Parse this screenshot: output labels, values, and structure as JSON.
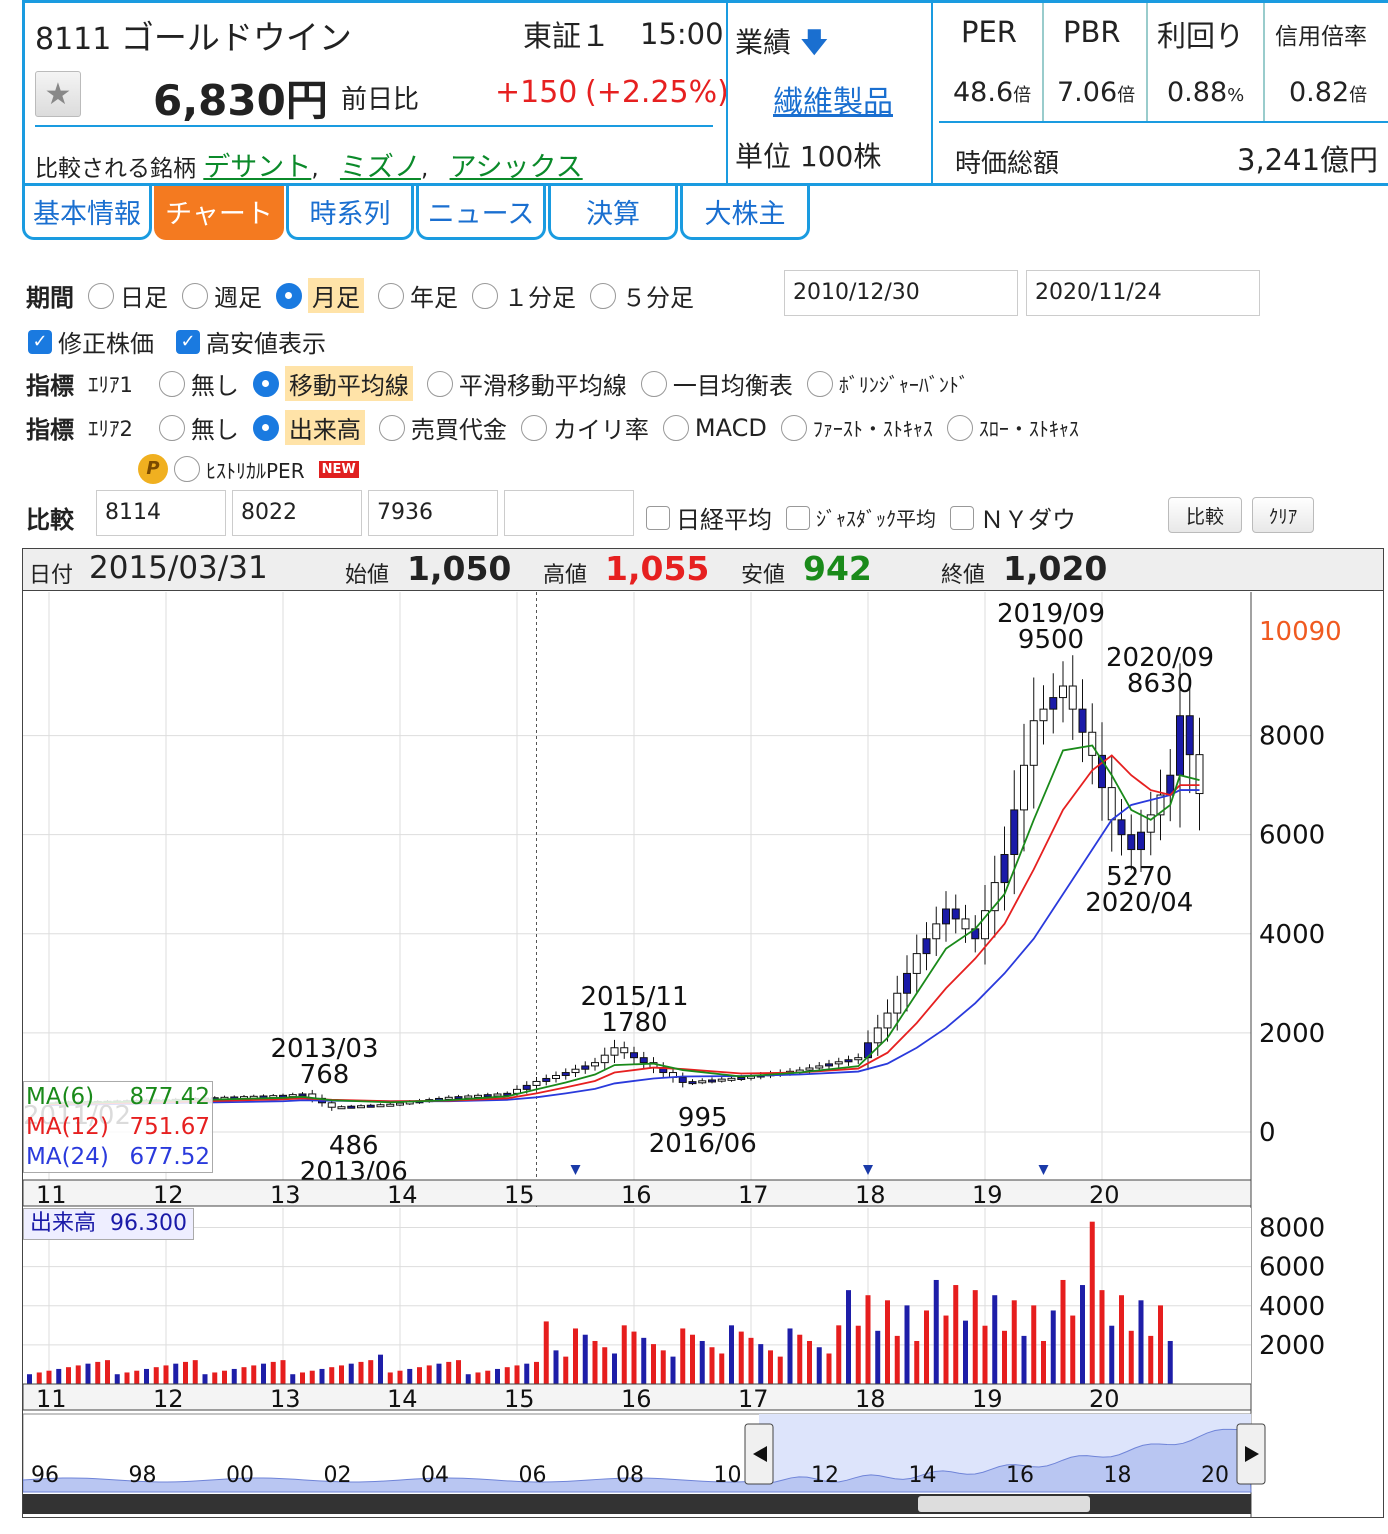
{
  "header": {
    "code": "8111",
    "name": "ゴールドウイン",
    "market": "東証１",
    "time": "15:00",
    "price": "6,830円",
    "change_label": "前日比",
    "change": "+150",
    "change_pct": "(+2.25%)",
    "compare_label": "比較される銘柄",
    "compare_stocks": [
      "デサント",
      "ミズノ",
      "アシックス"
    ],
    "performance_label": "業績",
    "sector": "繊維製品",
    "unit": "単位 100株",
    "metrics": [
      {
        "label": "PER",
        "value": "48.6",
        "unit": "倍"
      },
      {
        "label": "PBR",
        "value": "7.06",
        "unit": "倍"
      },
      {
        "label": "利回り",
        "value": "0.88",
        "unit": "%"
      },
      {
        "label": "信用倍率",
        "value": "0.82",
        "unit": "倍"
      }
    ],
    "market_cap_label": "時価総額",
    "market_cap": "3,241億円"
  },
  "tabs": [
    "基本情報",
    "チャート",
    "時系列",
    "ニュース",
    "決算",
    "大株主"
  ],
  "active_tab": 1,
  "controls": {
    "period_label": "期間",
    "period_options": [
      "日足",
      "週足",
      "月足",
      "年足",
      "１分足",
      "５分足"
    ],
    "period_selected": 2,
    "date_from": "2010/12/30",
    "date_to": "2020/11/24",
    "checks": [
      "修正株価",
      "高安値表示"
    ],
    "ind1_label": "指標",
    "ind1_area": "ｴﾘｱ1",
    "ind1_options": [
      "無し",
      "移動平均線",
      "平滑移動平均線",
      "一目均衡表",
      "ﾎﾞﾘﾝｼﾞｬｰﾊﾞﾝﾄﾞ"
    ],
    "ind1_selected": 1,
    "ind2_label": "指標",
    "ind2_area": "ｴﾘｱ2",
    "ind2_options": [
      "無し",
      "出来高",
      "売買代金",
      "カイリ率",
      "MACD",
      "ﾌｧｰｽﾄ・ｽﾄｷｬｽ",
      "ｽﾛｰ・ｽﾄｷｬｽ"
    ],
    "ind2_selected": 1,
    "hist_per": "ﾋｽﾄﾘｶﾙPER",
    "new_badge": "NEW",
    "p_badge": "P",
    "compare_label": "比較",
    "compare_codes": [
      "8114",
      "8022",
      "7936",
      ""
    ],
    "compare_checks": [
      "日経平均",
      "ｼﾞｬｽﾀﾞｯｸ平均",
      "ＮＹダウ"
    ],
    "btn_compare": "比較",
    "btn_clear": "ｸﾘｱ"
  },
  "infobar": {
    "date_label": "日付",
    "date": "2015/03/31",
    "open_label": "始値",
    "open": "1,050",
    "high_label": "高値",
    "high": "1,055",
    "low_label": "安値",
    "low": "942",
    "close_label": "終値",
    "close": "1,020"
  },
  "colors": {
    "up": "#ffffff",
    "down": "#1a1aa8",
    "ma6": "#1a8a1a",
    "ma12": "#e62020",
    "ma24": "#2a3adc",
    "vol_up": "#e61e1e",
    "vol_down": "#1e1ea8",
    "accent": "#1a9be0",
    "tab_active": "#f47a20"
  },
  "chart_data": [
    {
      "type": "candlestick",
      "period": "monthly",
      "x_ticks": [
        "11",
        "12",
        "13",
        "14",
        "15",
        "16",
        "17",
        "18",
        "19",
        "20"
      ],
      "y_ticks": [
        0,
        2000,
        4000,
        6000,
        8000
      ],
      "ylim": [
        0,
        10090
      ],
      "current_max_label": "10090",
      "ma_legend": [
        {
          "name": "MA(6)",
          "value": "877.42"
        },
        {
          "name": "MA(12)",
          "value": "751.67"
        },
        {
          "name": "MA(24)",
          "value": "677.52"
        }
      ],
      "annotations": [
        {
          "date": "2011/02",
          "value": ""
        },
        {
          "date": "2013/03",
          "value": "768"
        },
        {
          "date": "2013/06",
          "value": "486"
        },
        {
          "date": "2015/11",
          "value": "1780"
        },
        {
          "date": "2016/06",
          "value": "995"
        },
        {
          "date": "2019/09",
          "value": "9500"
        },
        {
          "date": "2020/09",
          "value": "8630"
        },
        {
          "date": "2020/04",
          "value": "5270"
        }
      ],
      "months": [
        "2011-01",
        "2011-07",
        "2012-01",
        "2012-07",
        "2013-01",
        "2013-03",
        "2013-06",
        "2013-12",
        "2014-06",
        "2014-12",
        "2015-03",
        "2015-06",
        "2015-09",
        "2015-11",
        "2016-03",
        "2016-06",
        "2016-12",
        "2017-06",
        "2017-12",
        "2018-03",
        "2018-06",
        "2018-09",
        "2018-12",
        "2019-03",
        "2019-06",
        "2019-09",
        "2019-12",
        "2020-02",
        "2020-04",
        "2020-06",
        "2020-08",
        "2020-09",
        "2020-11"
      ],
      "close": [
        600,
        620,
        650,
        700,
        740,
        768,
        500,
        560,
        700,
        780,
        1020,
        1200,
        1400,
        1700,
        1300,
        1000,
        1100,
        1250,
        1500,
        2400,
        3600,
        4500,
        3900,
        5600,
        8300,
        9000,
        7600,
        6300,
        5700,
        6400,
        7200,
        8400,
        6830
      ],
      "ma6": [
        580,
        600,
        630,
        660,
        690,
        710,
        640,
        600,
        640,
        720,
        860,
        1000,
        1160,
        1350,
        1380,
        1250,
        1120,
        1200,
        1330,
        1900,
        2800,
        3700,
        4100,
        4800,
        6300,
        7700,
        7800,
        7200,
        6500,
        6300,
        6600,
        7200,
        7100
      ],
      "ma12": [
        560,
        580,
        600,
        630,
        660,
        680,
        650,
        620,
        630,
        680,
        780,
        900,
        1030,
        1200,
        1300,
        1270,
        1180,
        1200,
        1280,
        1600,
        2200,
        2900,
        3500,
        4200,
        5300,
        6500,
        7300,
        7600,
        7200,
        6900,
        6800,
        7000,
        7000
      ],
      "ma24": [
        540,
        560,
        580,
        600,
        620,
        640,
        630,
        620,
        620,
        650,
        700,
        780,
        870,
        980,
        1080,
        1120,
        1130,
        1160,
        1220,
        1380,
        1700,
        2100,
        2600,
        3200,
        3900,
        4800,
        5700,
        6300,
        6600,
        6700,
        6800,
        6900,
        6900
      ]
    },
    {
      "type": "bar",
      "name": "出来高",
      "legend": "出来高",
      "legend_value": "96.300",
      "y_ticks": [
        2000,
        4000,
        6000,
        8000
      ],
      "ylim": [
        0,
        9000
      ],
      "x_ticks": [
        "11",
        "12",
        "13",
        "14",
        "15",
        "16",
        "17",
        "18",
        "19",
        "20"
      ]
    },
    {
      "type": "area",
      "name": "navigator",
      "x_ticks": [
        "96",
        "98",
        "00",
        "02",
        "04",
        "06",
        "08",
        "10",
        "12",
        "14",
        "16",
        "18",
        "20"
      ]
    }
  ]
}
